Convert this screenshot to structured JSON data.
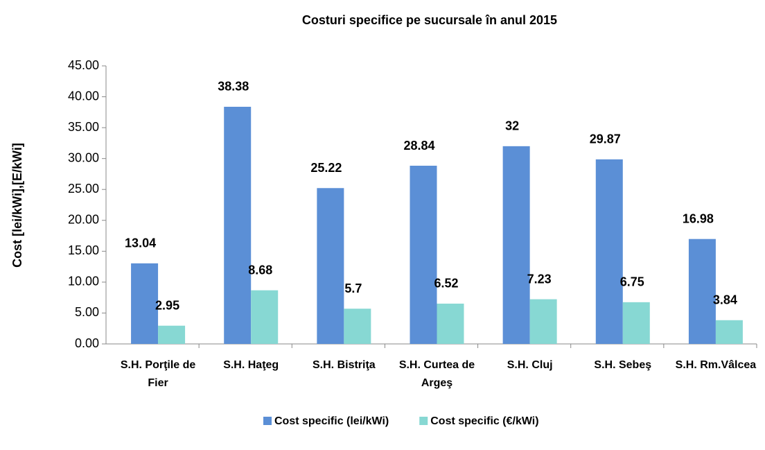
{
  "chart_data": {
    "type": "bar",
    "title": "Costuri specifice pe sucursale în anul 2015",
    "y_label": "Cost [lei/kWi],[E/kWi]",
    "categories": [
      "S.H. Porţile de Fier",
      "S.H. Haţeg",
      "S.H. Bistriţa",
      "S.H. Curtea de Argeş",
      "S.H. Cluj",
      "S.H. Sebeş",
      "S.H. Rm.Vâlcea"
    ],
    "series": [
      {
        "name": "Cost specific (lei/kWi)",
        "color": "#5b8fd6",
        "values": [
          13.04,
          38.38,
          25.22,
          28.84,
          32,
          29.87,
          16.98
        ]
      },
      {
        "name": "Cost specific (€/kWi)",
        "color": "#87d8d3",
        "values": [
          2.95,
          8.68,
          5.7,
          6.52,
          7.23,
          6.75,
          3.84
        ]
      }
    ],
    "ylim": [
      0,
      45
    ],
    "yticks": [
      {
        "value": 0,
        "label": "0.00"
      },
      {
        "value": 5,
        "label": "5.00"
      },
      {
        "value": 10,
        "label": "10.00"
      },
      {
        "value": 15,
        "label": "15.00"
      },
      {
        "value": 20,
        "label": "20.00"
      },
      {
        "value": 25,
        "label": "25.00"
      },
      {
        "value": 30,
        "label": "30.00"
      },
      {
        "value": 35,
        "label": "35.00"
      },
      {
        "value": 40,
        "label": "40.00"
      },
      {
        "value": 45,
        "label": "45.00"
      }
    ],
    "legend": "bottom"
  }
}
